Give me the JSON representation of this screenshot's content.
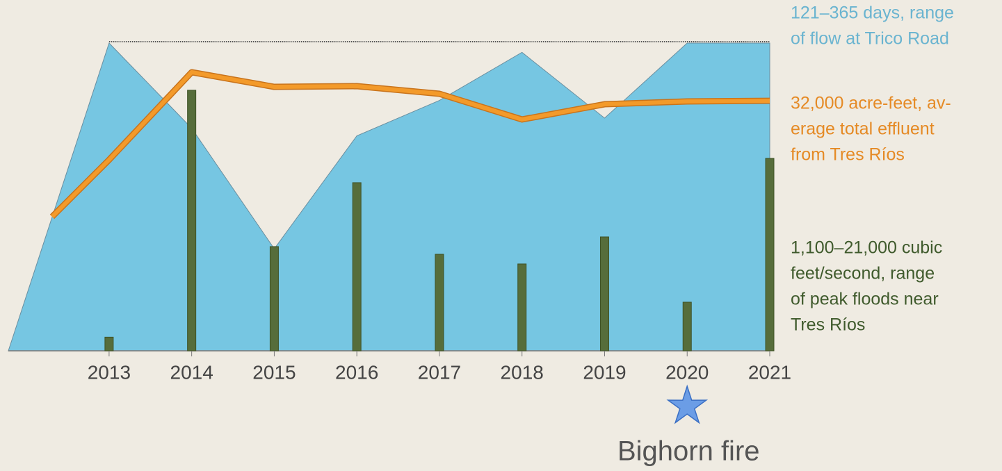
{
  "chart_data": {
    "type": "combo",
    "xlim": [
      2011.78,
      2021
    ],
    "xticks": [
      2013,
      2014,
      2015,
      2016,
      2017,
      2018,
      2019,
      2020,
      2021
    ],
    "ylim": [
      0,
      365
    ],
    "y2lim": [
      0,
      40000
    ],
    "y3lim": [
      0,
      24800
    ],
    "series": [
      {
        "name": "days of flow at Trico Road",
        "type": "area",
        "color": "#76c6e2",
        "axis": "y",
        "x": [
          2011.78,
          2013,
          2014,
          2015,
          2016,
          2017,
          2018,
          2019,
          2020,
          2021
        ],
        "values": [
          0,
          365,
          264,
          121,
          255,
          297,
          354,
          276,
          365,
          365
        ]
      },
      {
        "name": "total effluent from Tres Ríos",
        "type": "line",
        "color": "#f39a2a",
        "axis": "y2",
        "x": [
          2012.31,
          2013,
          2014,
          2015,
          2016,
          2017,
          2018,
          2019,
          2020,
          2021
        ],
        "values": [
          17430,
          24830,
          36210,
          34310,
          34400,
          33410,
          30070,
          32050,
          32420,
          32500
        ]
      },
      {
        "name": "peak floods near Tres Ríos",
        "type": "bar",
        "color": "#566d3b",
        "axis": "y3",
        "x": [
          2013,
          2014,
          2015,
          2016,
          2017,
          2018,
          2019,
          2020,
          2021
        ],
        "values": [
          1100,
          21000,
          8400,
          13550,
          7780,
          7000,
          9180,
          3920,
          15510
        ]
      }
    ],
    "annotations": [
      {
        "lines": [
          "121–365 days, range",
          "of flow at Trico Road"
        ],
        "color": "#6ab4d0"
      },
      {
        "lines": [
          "32,000 acre-feet, av-",
          "erage total effluent",
          "from Tres Ríos"
        ],
        "color": "#e58a25"
      },
      {
        "lines": [
          "1,100–21,000 cubic",
          "feet/second, range",
          "of peak floods near",
          "Tres Ríos"
        ],
        "color": "#3f5a2c"
      }
    ],
    "event": {
      "x": 2020,
      "label": "Bighorn fire"
    }
  }
}
